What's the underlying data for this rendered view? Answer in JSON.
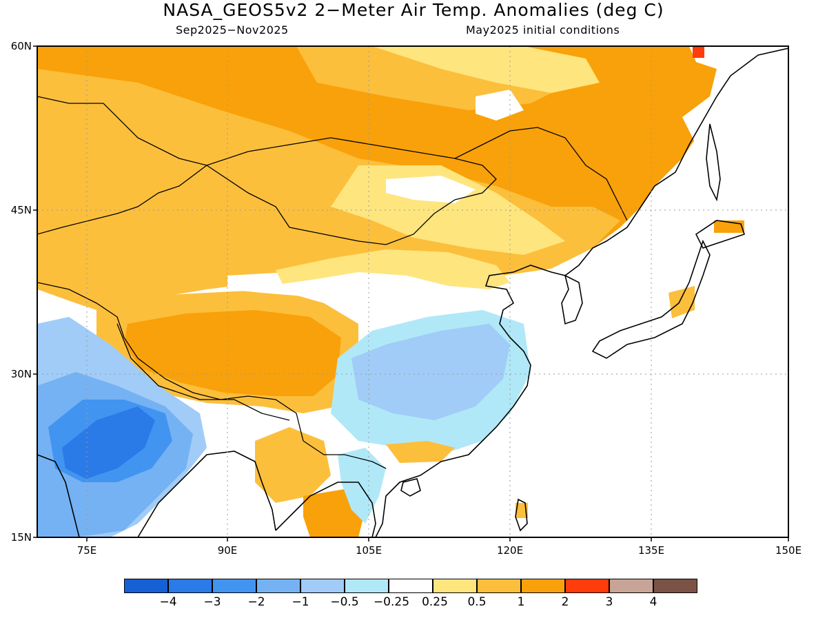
{
  "title": "NASA_GEOS5v2 2−Meter Air Temp. Anomalies (deg C)",
  "subtitle_left": "Sep2025−Nov2025",
  "subtitle_right": "May2025 initial conditions",
  "lat_labels": [
    "60N",
    "45N",
    "30N",
    "15N"
  ],
  "lon_labels": [
    "75E",
    "90E",
    "105E",
    "120E",
    "135E",
    "150E"
  ],
  "colorbar": {
    "colors": [
      "#1560d5",
      "#2a7ae8",
      "#4294f1",
      "#75b2f4",
      "#a0ccf7",
      "#b0e8f8",
      "#ffffff",
      "#fee57e",
      "#fcbf3c",
      "#f9a10a",
      "#ff3c0a",
      "#c8a497",
      "#7a5346"
    ],
    "labels": [
      "−4",
      "−3",
      "−2",
      "−1",
      "−0.5",
      "−0.25",
      "0.25",
      "0.5",
      "1",
      "2",
      "3",
      "4"
    ]
  },
  "map": {
    "region": {
      "lon": [
        70,
        150
      ],
      "lat": [
        15,
        60
      ]
    },
    "warm_color": "#f9a10a",
    "water_color": "#ffffff"
  }
}
